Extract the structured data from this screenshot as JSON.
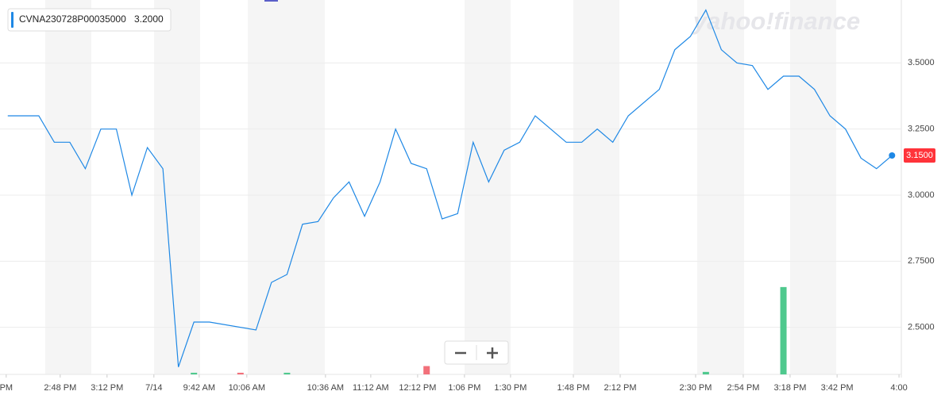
{
  "chart_data": {
    "type": "line",
    "legend": {
      "name": "CVNA230728P00035000",
      "value_label": "3.2000"
    },
    "last_label": "3.1500",
    "watermark": "yahoo!finance",
    "series": [
      {
        "name": "CVNA230728P00035000",
        "color": "#1e88e5",
        "x": [
          0,
          2,
          3,
          4,
          5,
          6,
          7,
          8,
          9,
          10,
          11,
          12,
          13,
          16,
          17,
          18,
          19,
          20,
          21,
          22,
          23,
          24,
          25,
          26,
          27,
          28,
          29,
          30,
          31,
          32,
          33,
          34,
          36,
          37,
          38,
          39,
          40,
          42,
          43,
          44,
          45,
          46,
          47,
          48,
          49,
          50,
          51,
          52,
          53,
          54,
          55,
          56,
          57
        ],
        "values": [
          3.3,
          3.3,
          3.2,
          3.2,
          3.1,
          3.25,
          3.25,
          3.0,
          3.18,
          3.1,
          2.35,
          2.52,
          2.52,
          2.49,
          2.67,
          2.7,
          2.89,
          2.9,
          2.99,
          3.05,
          2.92,
          3.05,
          3.25,
          3.12,
          3.1,
          2.91,
          2.93,
          3.2,
          3.05,
          3.17,
          3.2,
          3.3,
          3.2,
          3.2,
          3.25,
          3.2,
          3.3,
          3.4,
          3.55,
          3.6,
          3.7,
          3.55,
          3.5,
          3.49,
          3.4,
          3.45,
          3.45,
          3.4,
          3.3,
          3.25,
          3.14,
          3.1,
          3.15
        ]
      }
    ],
    "volume": {
      "x": [
        12,
        15,
        18,
        27,
        45,
        50
      ],
      "values": [
        2,
        2,
        2,
        10,
        3,
        105
      ],
      "colors": [
        "#4fc98e",
        "#f2707a",
        "#4fc98e",
        "#f2707a",
        "#4fc98e",
        "#4fc98e"
      ],
      "ylim": [
        0,
        450
      ]
    },
    "xlim": [
      -0.5,
      57.6
    ],
    "xticks": [
      {
        "value": -0.1,
        "label": "PM"
      },
      {
        "value": 3.38,
        "label": "2:48 PM"
      },
      {
        "value": 6.4,
        "label": "3:12 PM"
      },
      {
        "value": 9.42,
        "label": "7/14"
      },
      {
        "value": 12.34,
        "label": "9:42 AM"
      },
      {
        "value": 15.41,
        "label": "10:06 AM"
      },
      {
        "value": 20.48,
        "label": "10:36 AM"
      },
      {
        "value": 23.4,
        "label": "11:12 AM"
      },
      {
        "value": 26.42,
        "label": "12:12 PM"
      },
      {
        "value": 29.44,
        "label": "1:06 PM"
      },
      {
        "value": 32.41,
        "label": "1:30 PM"
      },
      {
        "value": 36.46,
        "label": "1:48 PM"
      },
      {
        "value": 39.48,
        "label": "2:12 PM"
      },
      {
        "value": 44.34,
        "label": "2:30 PM"
      },
      {
        "value": 47.41,
        "label": "2:54 PM"
      },
      {
        "value": 50.43,
        "label": "3:18 PM"
      },
      {
        "value": 53.46,
        "label": "3:42 PM"
      },
      {
        "value": 57.45,
        "label": "4:00"
      }
    ],
    "ylim": [
      2.322,
      3.738
    ],
    "yticks": [
      {
        "value": 2.5,
        "label": "2.5000"
      },
      {
        "value": 2.75,
        "label": "2.7500"
      },
      {
        "value": 3.0,
        "label": "3.0000"
      },
      {
        "value": 3.25,
        "label": "3.2500"
      },
      {
        "value": 3.5,
        "label": "3.5000"
      }
    ],
    "grid": true
  }
}
